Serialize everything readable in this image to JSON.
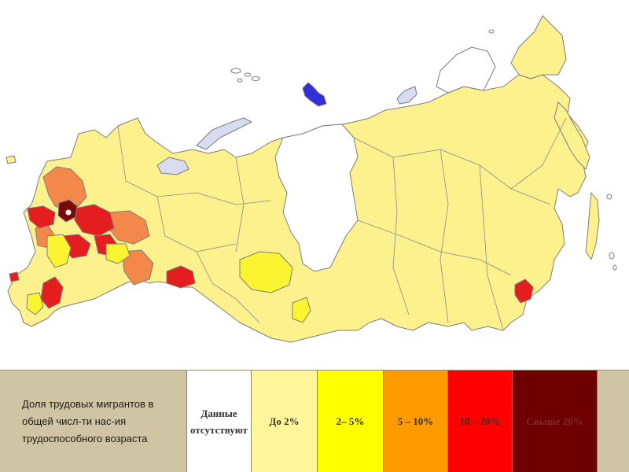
{
  "legend": {
    "title": "Доля трудовых мигрантов в общей числ-ти нас-ия трудоспособного возраста",
    "items": [
      {
        "label": "Данные отсутствуют",
        "color": "#ffffff"
      },
      {
        "label": "До 2%",
        "color": "#fff69a"
      },
      {
        "label": "2– 5%",
        "color": "#ffff00"
      },
      {
        "label": "5 – 10%",
        "color": "#ff9a00"
      },
      {
        "label": "10 – 20%",
        "color": "#ff0000"
      },
      {
        "label": "Свыше 20%",
        "color": "#6e0000"
      }
    ]
  },
  "colors": {
    "land": "#fdf18e",
    "border": "#7d7d7d",
    "no_data": "#ffffff",
    "ice": "#d8dcf0",
    "island_blue": "#3030d8"
  }
}
